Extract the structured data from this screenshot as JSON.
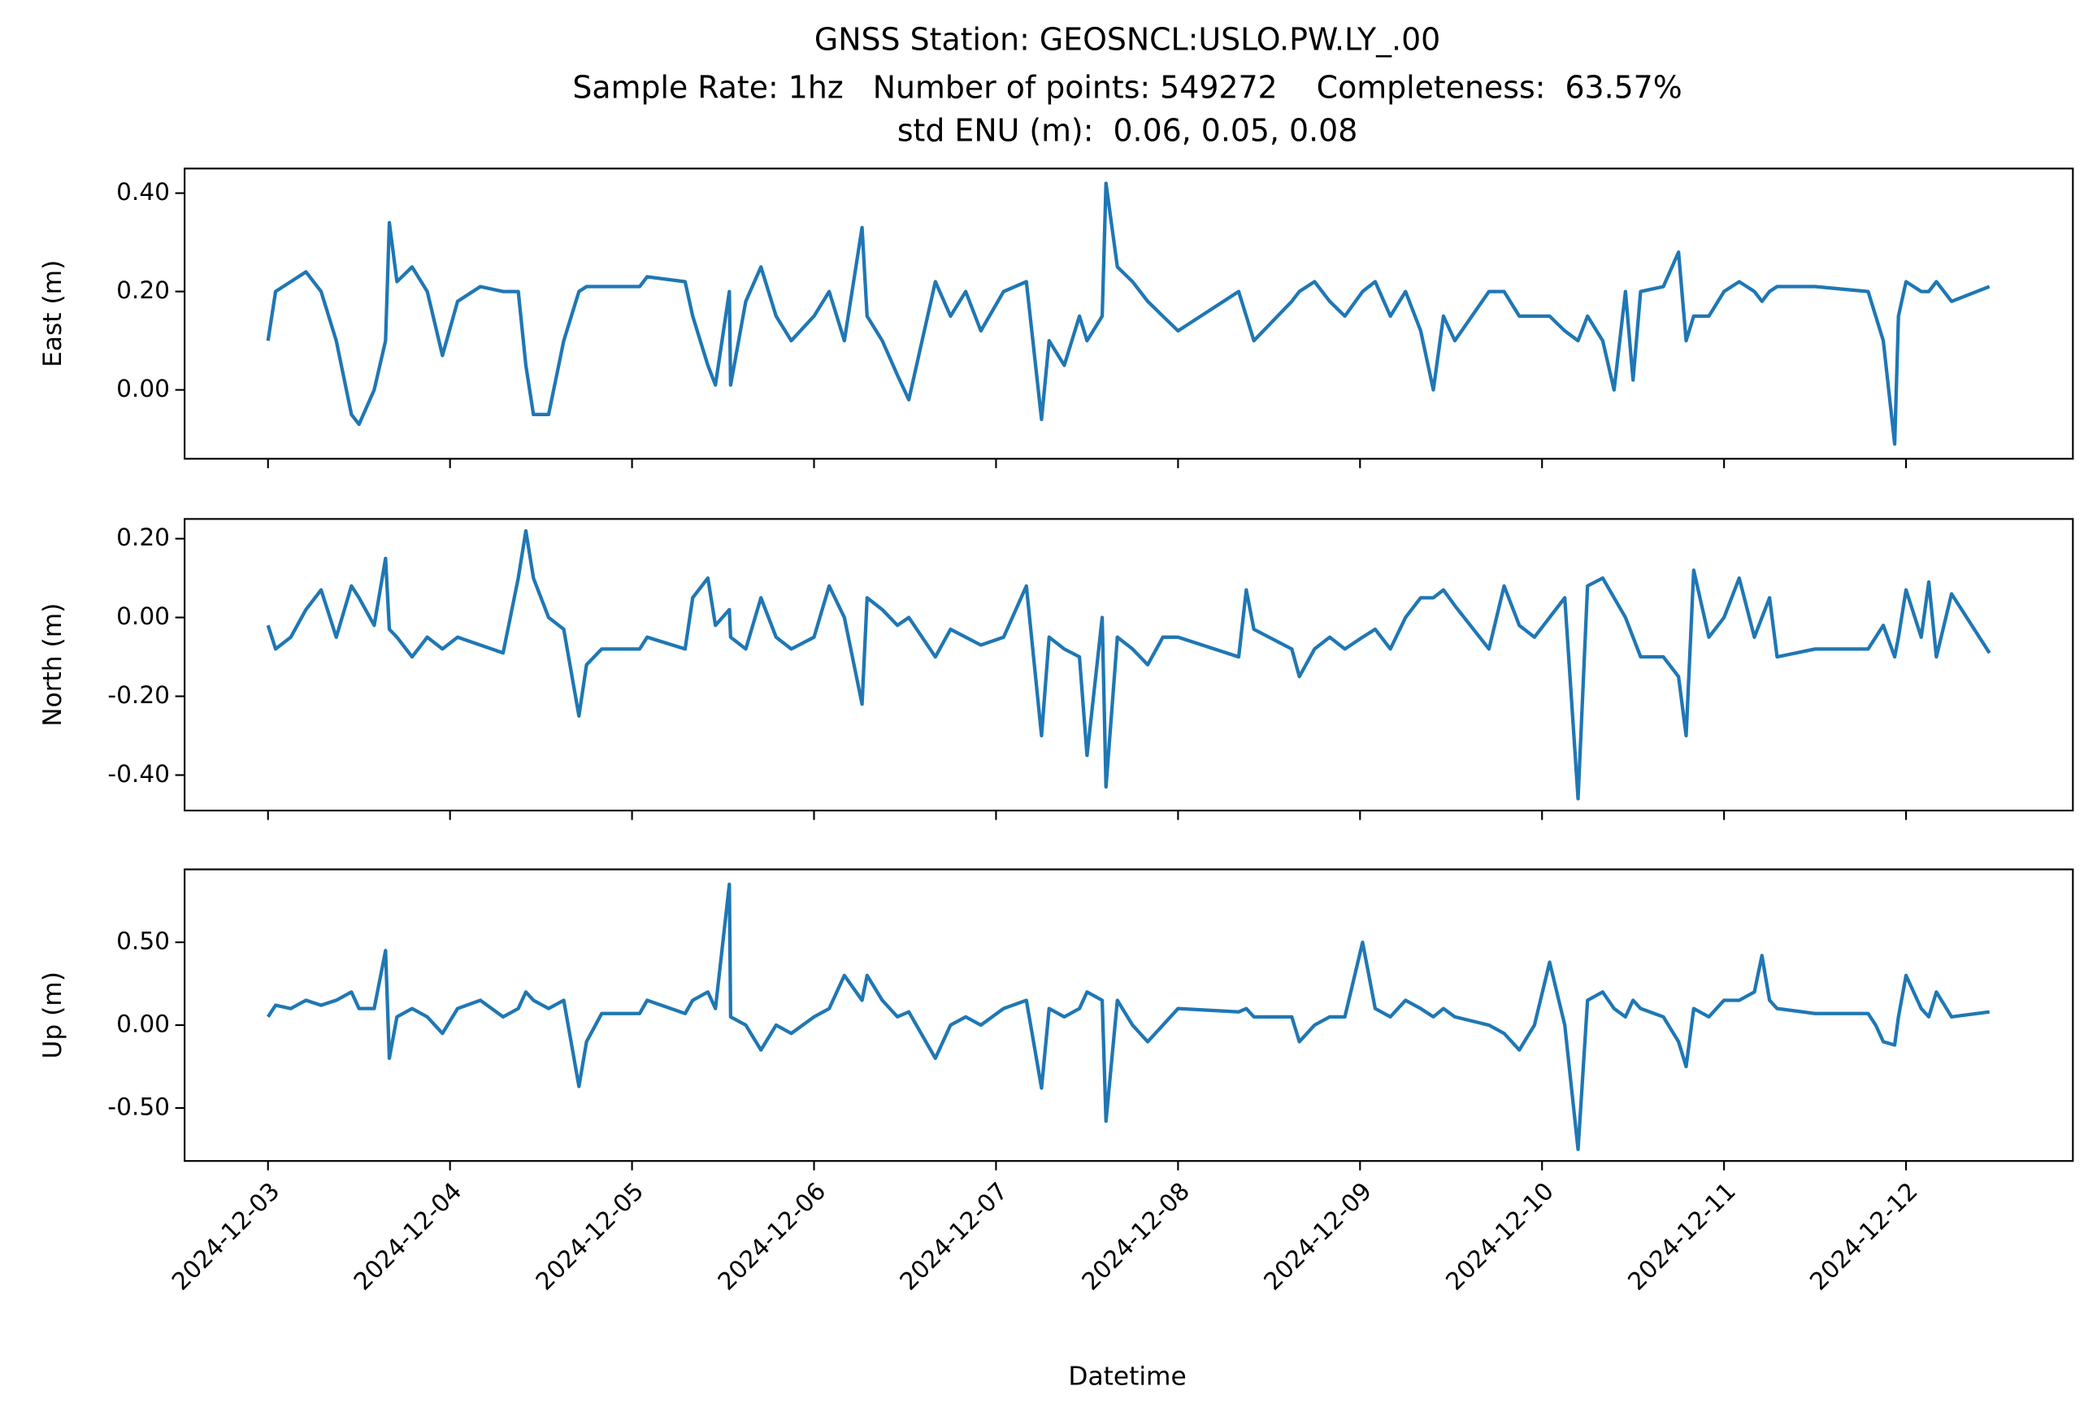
{
  "chart_data": {
    "type": "line",
    "title": [
      "GNSS Station: GEOSNCL:USLO.PW.LY_.00",
      "Sample Rate: 1hz   Number of points: 549272    Completeness:  63.57%",
      "std ENU (m):  0.06, 0.05, 0.08"
    ],
    "xlabel": "Datetime",
    "xlim": [
      "2024-12-02T13:00",
      "2024-12-12T22:00"
    ],
    "xticks": [
      "2024-12-03",
      "2024-12-04",
      "2024-12-05",
      "2024-12-06",
      "2024-12-07",
      "2024-12-08",
      "2024-12-09",
      "2024-12-10",
      "2024-12-11",
      "2024-12-12"
    ],
    "x": [
      "2024-12-03T00:00",
      "2024-12-03T01:00",
      "2024-12-03T03:00",
      "2024-12-03T05:00",
      "2024-12-03T07:00",
      "2024-12-03T09:00",
      "2024-12-03T11:00",
      "2024-12-03T12:00",
      "2024-12-03T14:00",
      "2024-12-03T15:30",
      "2024-12-03T16:00",
      "2024-12-03T17:00",
      "2024-12-03T19:00",
      "2024-12-03T21:00",
      "2024-12-03T23:00",
      "2024-12-04T01:00",
      "2024-12-04T04:00",
      "2024-12-04T07:00",
      "2024-12-04T09:00",
      "2024-12-04T10:00",
      "2024-12-04T11:00",
      "2024-12-04T13:00",
      "2024-12-04T15:00",
      "2024-12-04T17:00",
      "2024-12-04T18:00",
      "2024-12-04T20:00",
      "2024-12-05T01:00",
      "2024-12-05T02:00",
      "2024-12-05T07:00",
      "2024-12-05T08:00",
      "2024-12-05T10:00",
      "2024-12-05T11:00",
      "2024-12-05T12:50",
      "2024-12-05T13:00",
      "2024-12-05T15:00",
      "2024-12-05T17:00",
      "2024-12-05T19:00",
      "2024-12-05T21:00",
      "2024-12-06T00:00",
      "2024-12-06T02:00",
      "2024-12-06T04:00",
      "2024-12-06T06:20",
      "2024-12-06T07:00",
      "2024-12-06T09:00",
      "2024-12-06T11:00",
      "2024-12-06T12:30",
      "2024-12-06T16:00",
      "2024-12-06T18:00",
      "2024-12-06T20:00",
      "2024-12-06T22:00",
      "2024-12-07T01:00",
      "2024-12-07T04:00",
      "2024-12-07T06:00",
      "2024-12-07T07:00",
      "2024-12-07T09:00",
      "2024-12-07T11:00",
      "2024-12-07T12:00",
      "2024-12-07T14:00",
      "2024-12-07T14:30",
      "2024-12-07T16:00",
      "2024-12-07T18:00",
      "2024-12-07T20:00",
      "2024-12-07T22:00",
      "2024-12-08T00:00",
      "2024-12-08T08:00",
      "2024-12-08T09:00",
      "2024-12-08T10:00",
      "2024-12-08T15:00",
      "2024-12-08T16:00",
      "2024-12-08T18:00",
      "2024-12-08T20:00",
      "2024-12-08T22:00",
      "2024-12-09T00:20",
      "2024-12-09T02:00",
      "2024-12-09T04:00",
      "2024-12-09T06:00",
      "2024-12-09T08:00",
      "2024-12-09T09:40",
      "2024-12-09T11:00",
      "2024-12-09T12:30",
      "2024-12-09T17:00",
      "2024-12-09T19:00",
      "2024-12-09T21:00",
      "2024-12-09T23:00",
      "2024-12-10T01:00",
      "2024-12-10T03:00",
      "2024-12-10T04:45",
      "2024-12-10T06:00",
      "2024-12-10T08:00",
      "2024-12-10T09:30",
      "2024-12-10T11:00",
      "2024-12-10T12:00",
      "2024-12-10T13:00",
      "2024-12-10T16:00",
      "2024-12-10T18:00",
      "2024-12-10T19:00",
      "2024-12-10T20:00",
      "2024-12-10T22:00",
      "2024-12-11T00:00",
      "2024-12-11T02:00",
      "2024-12-11T04:00",
      "2024-12-11T05:00",
      "2024-12-11T06:00",
      "2024-12-11T07:00",
      "2024-12-11T12:00",
      "2024-12-11T19:00",
      "2024-12-11T20:00",
      "2024-12-11T21:00",
      "2024-12-11T22:30",
      "2024-12-11T23:00",
      "2024-12-12T00:00",
      "2024-12-12T02:00",
      "2024-12-12T03:00",
      "2024-12-12T04:00",
      "2024-12-12T06:00",
      "2024-12-12T11:00"
    ],
    "panels": [
      {
        "ylabel": "East (m)",
        "color": "#1f77b4",
        "ylim": [
          -0.14,
          0.45
        ],
        "yticks": [
          {
            "value": 0,
            "label": "0.00"
          },
          {
            "value": 0.2,
            "label": "0.20"
          },
          {
            "value": 0.4,
            "label": "0.40"
          }
        ],
        "values": [
          0.1,
          0.2,
          0.22,
          0.24,
          0.2,
          0.1,
          -0.05,
          -0.07,
          0.0,
          0.1,
          0.34,
          0.22,
          0.25,
          0.2,
          0.07,
          0.18,
          0.21,
          0.2,
          0.2,
          0.05,
          -0.05,
          -0.05,
          0.1,
          0.2,
          0.21,
          0.21,
          0.21,
          0.23,
          0.22,
          0.15,
          0.05,
          0.01,
          0.2,
          0.01,
          0.18,
          0.25,
          0.15,
          0.1,
          0.15,
          0.2,
          0.1,
          0.33,
          0.15,
          0.1,
          0.03,
          -0.02,
          0.22,
          0.15,
          0.2,
          0.12,
          0.2,
          0.22,
          -0.06,
          0.1,
          0.05,
          0.15,
          0.1,
          0.15,
          0.42,
          0.25,
          0.22,
          0.18,
          0.15,
          0.12,
          0.2,
          0.15,
          0.1,
          0.18,
          0.2,
          0.22,
          0.18,
          0.15,
          0.2,
          0.22,
          0.15,
          0.2,
          0.12,
          0.0,
          0.15,
          0.1,
          0.2,
          0.2,
          0.15,
          0.15,
          0.15,
          0.12,
          0.1,
          0.15,
          0.1,
          0.0,
          0.2,
          0.02,
          0.2,
          0.21,
          0.28,
          0.1,
          0.15,
          0.15,
          0.2,
          0.22,
          0.2,
          0.18,
          0.2,
          0.21,
          0.21,
          0.2,
          0.15,
          0.1,
          -0.11,
          0.15,
          0.22,
          0.2,
          0.2,
          0.22,
          0.18,
          0.21
        ]
      },
      {
        "ylabel": "North (m)",
        "color": "#1f77b4",
        "ylim": [
          -0.49,
          0.25
        ],
        "yticks": [
          {
            "value": -0.4,
            "label": "-0.40"
          },
          {
            "value": -0.2,
            "label": "-0.20"
          },
          {
            "value": 0,
            "label": "0.00"
          },
          {
            "value": 0.2,
            "label": "0.20"
          }
        ],
        "values": [
          -0.02,
          -0.08,
          -0.05,
          0.02,
          0.07,
          -0.05,
          0.08,
          0.05,
          -0.02,
          0.15,
          -0.03,
          -0.05,
          -0.1,
          -0.05,
          -0.08,
          -0.05,
          -0.07,
          -0.09,
          0.1,
          0.22,
          0.1,
          0.0,
          -0.03,
          -0.25,
          -0.12,
          -0.08,
          -0.08,
          -0.05,
          -0.08,
          0.05,
          0.1,
          -0.02,
          0.02,
          -0.05,
          -0.08,
          0.05,
          -0.05,
          -0.08,
          -0.05,
          0.08,
          0.0,
          -0.22,
          0.05,
          0.02,
          -0.02,
          0.0,
          -0.1,
          -0.03,
          -0.05,
          -0.07,
          -0.05,
          0.08,
          -0.3,
          -0.05,
          -0.08,
          -0.1,
          -0.35,
          0.0,
          -0.43,
          -0.05,
          -0.08,
          -0.12,
          -0.05,
          -0.05,
          -0.1,
          0.07,
          -0.03,
          -0.08,
          -0.15,
          -0.08,
          -0.05,
          -0.08,
          -0.05,
          -0.03,
          -0.08,
          0.0,
          0.05,
          0.05,
          0.07,
          0.03,
          -0.08,
          0.08,
          -0.02,
          -0.05,
          0.0,
          0.05,
          -0.46,
          0.08,
          0.1,
          0.05,
          0.0,
          -0.05,
          -0.1,
          -0.1,
          -0.15,
          -0.3,
          0.12,
          -0.05,
          0.0,
          0.1,
          -0.05,
          0.0,
          0.05,
          -0.1,
          -0.08,
          -0.08,
          -0.05,
          -0.02,
          -0.1,
          -0.05,
          0.07,
          -0.05,
          0.09,
          -0.1,
          0.06,
          -0.09
        ]
      },
      {
        "ylabel": "Up (m)",
        "color": "#1f77b4",
        "ylim": [
          -0.82,
          0.94
        ],
        "yticks": [
          {
            "value": -0.5,
            "label": "-0.50"
          },
          {
            "value": 0,
            "label": "0.00"
          },
          {
            "value": 0.5,
            "label": "0.50"
          }
        ],
        "values": [
          0.05,
          0.12,
          0.1,
          0.15,
          0.12,
          0.15,
          0.2,
          0.1,
          0.1,
          0.45,
          -0.2,
          0.05,
          0.1,
          0.05,
          -0.05,
          0.1,
          0.15,
          0.05,
          0.1,
          0.2,
          0.15,
          0.1,
          0.15,
          -0.37,
          -0.1,
          0.07,
          0.07,
          0.15,
          0.07,
          0.15,
          0.2,
          0.1,
          0.85,
          0.05,
          0.0,
          -0.15,
          0.0,
          -0.05,
          0.05,
          0.1,
          0.3,
          0.15,
          0.3,
          0.15,
          0.05,
          0.08,
          -0.2,
          0.0,
          0.05,
          0.0,
          0.1,
          0.15,
          -0.38,
          0.1,
          0.05,
          0.1,
          0.2,
          0.15,
          -0.58,
          0.15,
          0.0,
          -0.1,
          0.0,
          0.1,
          0.08,
          0.1,
          0.05,
          0.05,
          -0.1,
          0.0,
          0.05,
          0.05,
          0.5,
          0.1,
          0.05,
          0.15,
          0.1,
          0.05,
          0.1,
          0.05,
          0.0,
          -0.05,
          -0.15,
          0.0,
          0.38,
          0.0,
          -0.75,
          0.15,
          0.2,
          0.1,
          0.05,
          0.15,
          0.1,
          0.05,
          -0.1,
          -0.25,
          0.1,
          0.05,
          0.15,
          0.15,
          0.2,
          0.42,
          0.15,
          0.1,
          0.07,
          0.07,
          0.0,
          -0.1,
          -0.12,
          0.05,
          0.3,
          0.1,
          0.05,
          0.2,
          0.05,
          0.08
        ]
      }
    ]
  }
}
